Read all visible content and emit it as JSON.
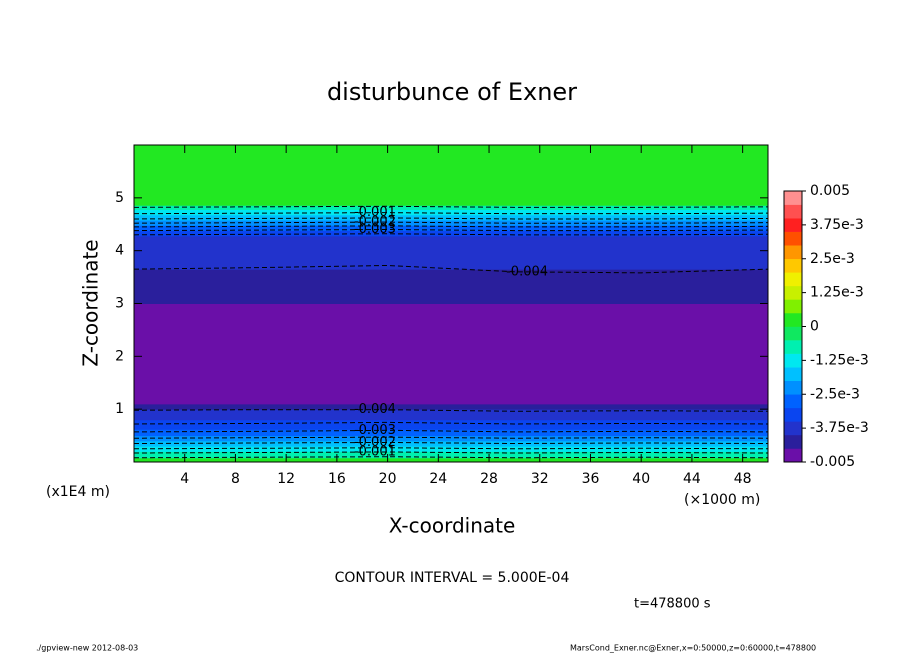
{
  "chart_data": {
    "type": "contour",
    "title": "disturbunce of Exner",
    "xlabel": "X-coordinate",
    "ylabel": "Z-coordinate",
    "x_unit_label": "(×1000 m)",
    "y_unit_label": "(x1E4 m)",
    "xlim": [
      0,
      50
    ],
    "ylim": [
      0,
      6
    ],
    "xticks": [
      4,
      8,
      12,
      16,
      20,
      24,
      28,
      32,
      36,
      40,
      44,
      48
    ],
    "yticks": [
      1,
      2,
      3,
      4,
      5
    ],
    "profile": {
      "z": [
        0,
        0.08,
        0.2,
        0.3,
        0.4,
        0.5,
        0.62,
        0.8,
        1.0,
        1.1,
        3.0,
        3.65,
        4.28,
        4.38,
        4.48,
        4.58,
        4.68,
        4.78,
        4.86
      ],
      "values": [
        0.0001,
        -0.0007,
        -0.0012,
        -0.0017,
        -0.0022,
        -0.0027,
        -0.0032,
        -0.0037,
        -0.0042,
        -0.0046,
        -0.0042,
        -0.0038,
        -0.0033,
        -0.0028,
        -0.0023,
        -0.0018,
        -0.0013,
        -0.0008,
        0.0001
      ]
    },
    "contour_x": [
      0,
      10,
      20,
      30,
      40,
      50
    ],
    "contours": [
      {
        "level": -0.0005,
        "values": [
          0.08,
          0.09,
          0.1,
          0.08,
          0.09,
          0.08
        ]
      },
      {
        "level": -0.001,
        "label": "-0.001",
        "values": [
          0.17,
          0.18,
          0.19,
          0.17,
          0.18,
          0.17
        ]
      },
      {
        "level": -0.0015,
        "values": [
          0.25,
          0.26,
          0.27,
          0.25,
          0.26,
          0.25
        ]
      },
      {
        "level": -0.002,
        "label": "-0.002",
        "values": [
          0.35,
          0.36,
          0.37,
          0.35,
          0.36,
          0.35
        ]
      },
      {
        "level": -0.0025,
        "values": [
          0.45,
          0.46,
          0.47,
          0.45,
          0.46,
          0.45
        ]
      },
      {
        "level": -0.003,
        "label": "-0.003",
        "values": [
          0.57,
          0.58,
          0.6,
          0.57,
          0.58,
          0.57
        ]
      },
      {
        "level": -0.0035,
        "values": [
          0.72,
          0.73,
          0.75,
          0.72,
          0.73,
          0.72
        ]
      },
      {
        "level": -0.004,
        "label": "-0.004",
        "values": [
          0.98,
          0.99,
          0.99,
          0.96,
          0.97,
          0.96
        ]
      },
      {
        "level": -0.004,
        "label": "-0.004",
        "values": [
          3.65,
          3.68,
          3.72,
          3.6,
          3.58,
          3.65
        ]
      },
      {
        "level": -0.0035,
        "values": [
          4.3,
          4.31,
          4.32,
          4.3,
          4.3,
          4.31
        ]
      },
      {
        "level": -0.003,
        "label": "-0.003",
        "values": [
          4.38,
          4.39,
          4.4,
          4.38,
          4.38,
          4.39
        ]
      },
      {
        "level": -0.0025,
        "values": [
          4.45,
          4.46,
          4.47,
          4.45,
          4.45,
          4.46
        ]
      },
      {
        "level": -0.002,
        "label": "-0.002",
        "values": [
          4.52,
          4.53,
          4.54,
          4.52,
          4.52,
          4.53
        ]
      },
      {
        "level": -0.0015,
        "values": [
          4.6,
          4.61,
          4.62,
          4.6,
          4.6,
          4.61
        ]
      },
      {
        "level": -0.001,
        "label": "-0.001",
        "values": [
          4.7,
          4.71,
          4.72,
          4.7,
          4.7,
          4.71
        ]
      },
      {
        "level": -0.0005,
        "values": [
          4.82,
          4.83,
          4.84,
          4.82,
          4.82,
          4.83
        ]
      }
    ],
    "colorbar": {
      "lim": [
        -0.005,
        0.005
      ],
      "levels": [
        -0.005,
        -0.0045,
        -0.004,
        -0.0035,
        -0.003,
        -0.0025,
        -0.002,
        -0.0015,
        -0.001,
        -0.0005,
        0,
        0.0005,
        0.001,
        0.0015,
        0.002,
        0.0025,
        0.003,
        0.0035,
        0.004,
        0.0045,
        0.005
      ],
      "colors": [
        "#6a0fa8",
        "#2a1f9c",
        "#2233cc",
        "#0a45f0",
        "#0062ff",
        "#0090ff",
        "#00c0ff",
        "#00e8f0",
        "#00f0b0",
        "#10e860",
        "#22e822",
        "#80f000",
        "#c8f000",
        "#f0f000",
        "#ffc800",
        "#ff9600",
        "#ff5000",
        "#ff2020",
        "#ff5050",
        "#ff9090"
      ],
      "ticks": [
        0.005,
        {
          "value": 0.00375,
          "label": "3.75e-3"
        },
        {
          "value": 0.0025,
          "label": "2.5e-3"
        },
        {
          "value": 0.00125,
          "label": "1.25e-3"
        },
        0,
        {
          "value": -0.00125,
          "label": "-1.25e-3"
        },
        {
          "value": -0.0025,
          "label": "-2.5e-3"
        },
        {
          "value": -0.00375,
          "label": "-3.75e-3"
        },
        -0.005
      ]
    },
    "contour_interval_text": "CONTOUR INTERVAL = 5.000E-04",
    "time_text": "t=478800 s",
    "footer_left": "./gpview-new  2012-08-03",
    "footer_right": "MarsCond_Exner.nc@Exner,x=0:50000,z=0:60000,t=478800"
  }
}
